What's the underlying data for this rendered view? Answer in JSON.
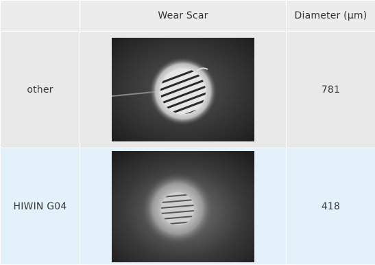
{
  "table": {
    "headers": [
      "",
      "Wear Scar",
      "Diameter (μm)"
    ],
    "rows": [
      {
        "label": "other",
        "diameter": "781"
      },
      {
        "label": "HIWIN G04",
        "diameter": "418"
      }
    ]
  },
  "colors": {
    "header_bg": "#ececec",
    "row1_bg": "#e9e9e9",
    "row2_bg": "#e3f2fa"
  }
}
